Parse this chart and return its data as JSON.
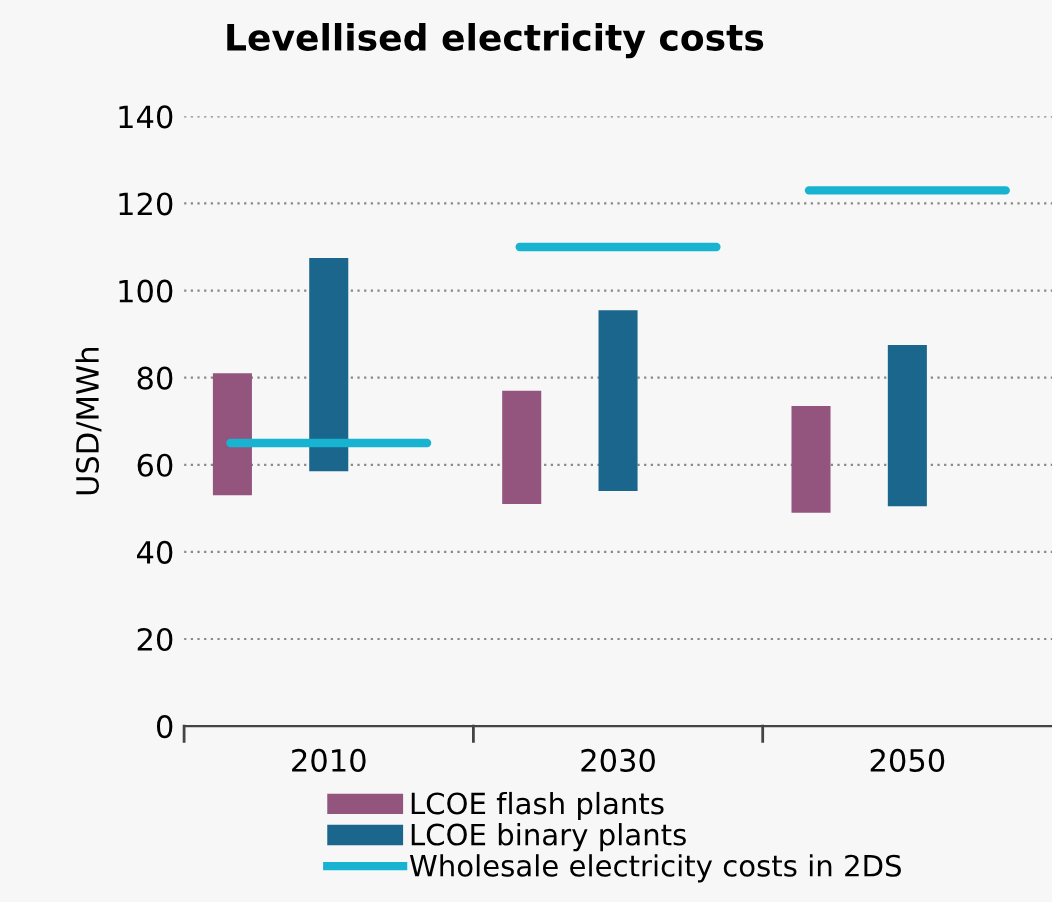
{
  "chart_data": {
    "type": "bar",
    "title": "Levellised electricity costs",
    "ylabel": "USD/MWh",
    "categories": [
      "2010",
      "2030",
      "2050"
    ],
    "series": [
      {
        "name": "LCOE flash plants",
        "color": "#93557e",
        "base": [
          53,
          51,
          49
        ],
        "values": [
          28,
          26,
          24.5
        ]
      },
      {
        "name": "LCOE binary plants",
        "color": "#1a668c",
        "base": [
          58.5,
          54,
          50.5
        ],
        "values": [
          49,
          41.5,
          37
        ]
      }
    ],
    "ref_lines": [
      {
        "axis": "y",
        "value": 65,
        "label": "Wholesale electricity costs in 2DS",
        "color": "#17b3d1"
      },
      {
        "axis": "y",
        "value": 110,
        "color": "#17b3d1"
      },
      {
        "axis": "y",
        "value": 123,
        "color": "#17b3d1"
      }
    ],
    "ylim": [
      0,
      140
    ],
    "yticks": [
      0,
      20,
      40,
      60,
      80,
      100,
      120,
      140
    ],
    "grid": "y",
    "legend": "bottom"
  }
}
